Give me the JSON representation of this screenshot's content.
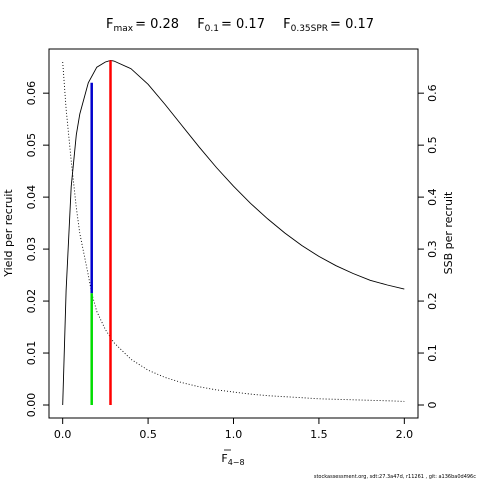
{
  "chart_data": {
    "type": "line",
    "title": {
      "fmax_label": "F",
      "fmax_sub": "max",
      "fmax_value": "= 0.28",
      "f01_label": "F",
      "f01_sub": "0.1",
      "f01_value": "= 0.17",
      "fspr_label": "F",
      "fspr_sub": "0.35SPR",
      "fspr_value": "= 0.17"
    },
    "xlabel": "F",
    "xlabel_sub": "4−8",
    "ylabel_left": "Yield per recruit",
    "ylabel_right": "SSB per recruit",
    "xlim": [
      -0.08,
      2.08
    ],
    "ylim_left": [
      -0.0025,
      0.0685
    ],
    "ylim_right": [
      -0.025,
      0.685
    ],
    "x_ticks": [
      0.0,
      0.5,
      1.0,
      1.5,
      2.0
    ],
    "x_tick_labels": [
      "0.0",
      "0.5",
      "1.0",
      "1.5",
      "2.0"
    ],
    "y_left_ticks": [
      0.0,
      0.01,
      0.02,
      0.03,
      0.04,
      0.05,
      0.06
    ],
    "y_left_tick_labels": [
      "0.00",
      "0.01",
      "0.02",
      "0.03",
      "0.04",
      "0.05",
      "0.06"
    ],
    "y_right_ticks": [
      0.0,
      0.1,
      0.2,
      0.3,
      0.4,
      0.5,
      0.6
    ],
    "y_right_tick_labels": [
      "0",
      "0.1",
      "0.2",
      "0.3",
      "0.4",
      "0.5",
      "0.6"
    ],
    "series": [
      {
        "axis": "left",
        "style": "solid",
        "x": [
          0,
          0.02,
          0.05,
          0.08,
          0.1,
          0.15,
          0.2,
          0.25,
          0.28,
          0.3,
          0.4,
          0.5,
          0.6,
          0.7,
          0.8,
          0.9,
          1.0,
          1.1,
          1.2,
          1.3,
          1.4,
          1.5,
          1.6,
          1.7,
          1.8,
          1.9,
          2.0
        ],
        "y": [
          0,
          0.022,
          0.042,
          0.052,
          0.056,
          0.062,
          0.065,
          0.066,
          0.0663,
          0.0662,
          0.0647,
          0.0617,
          0.0578,
          0.0537,
          0.0496,
          0.0457,
          0.0421,
          0.0388,
          0.0358,
          0.0331,
          0.0307,
          0.0286,
          0.0268,
          0.0253,
          0.024,
          0.0231,
          0.0223
        ]
      },
      {
        "axis": "right",
        "style": "dotted",
        "x": [
          0,
          0.02,
          0.05,
          0.08,
          0.1,
          0.15,
          0.17,
          0.2,
          0.25,
          0.28,
          0.3,
          0.4,
          0.5,
          0.6,
          0.7,
          0.8,
          0.9,
          1.0,
          1.1,
          1.2,
          1.3,
          1.4,
          1.5,
          1.6,
          1.7,
          1.8,
          1.9,
          2.0
        ],
        "y": [
          0.66,
          0.57,
          0.47,
          0.38,
          0.33,
          0.25,
          0.215,
          0.18,
          0.145,
          0.13,
          0.12,
          0.088,
          0.067,
          0.053,
          0.043,
          0.035,
          0.029,
          0.025,
          0.021,
          0.018,
          0.016,
          0.014,
          0.012,
          0.011,
          0.01,
          0.009,
          0.008,
          0.007
        ]
      }
    ],
    "reference_lines": [
      {
        "x": 0.28,
        "y_from": 0.0,
        "y_to": 0.0663,
        "axis": "left",
        "color": "#ff0000"
      },
      {
        "x": 0.17,
        "y_from": 0.0215,
        "y_to": 0.062,
        "axis": "left",
        "color": "#0000cc"
      },
      {
        "x": 0.17,
        "y_from": 0.0,
        "y_to": 0.0215,
        "axis": "left",
        "color": "#00dd00"
      }
    ],
    "footer": "stockassessment.org, sdt:27.3a47d, r11261 , git: a136ba0d496c"
  }
}
